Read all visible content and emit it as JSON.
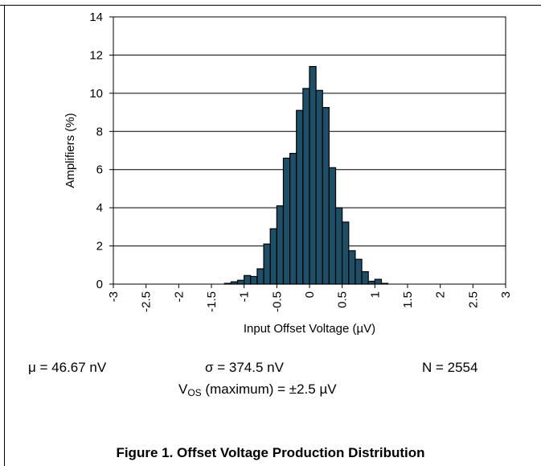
{
  "chart_data": {
    "type": "bar",
    "title": "",
    "xlabel": "Input Offset Voltage (µV)",
    "ylabel": "Amplifiers (%)",
    "xlim": [
      -3,
      3
    ],
    "ylim": [
      0,
      14
    ],
    "bin_width": 0.1,
    "x_ticks": [
      "-3",
      "-2.5",
      "-2",
      "-1.5",
      "-1",
      "-0.5",
      "0",
      "0.5",
      "1",
      "1.5",
      "2",
      "2.5",
      "3"
    ],
    "y_ticks": [
      "0",
      "2",
      "4",
      "6",
      "8",
      "10",
      "12",
      "14"
    ],
    "grid": "horizontal",
    "bar_color": "#1f4e67",
    "bins": [
      {
        "x0": -1.3,
        "value": 0.04
      },
      {
        "x0": -1.2,
        "value": 0.12
      },
      {
        "x0": -1.1,
        "value": 0.2
      },
      {
        "x0": -1.0,
        "value": 0.45
      },
      {
        "x0": -0.9,
        "value": 0.4
      },
      {
        "x0": -0.8,
        "value": 0.8
      },
      {
        "x0": -0.7,
        "value": 2.1
      },
      {
        "x0": -0.6,
        "value": 2.9
      },
      {
        "x0": -0.5,
        "value": 4.1
      },
      {
        "x0": -0.4,
        "value": 6.6
      },
      {
        "x0": -0.3,
        "value": 6.85
      },
      {
        "x0": -0.2,
        "value": 9.1
      },
      {
        "x0": -0.1,
        "value": 10.25
      },
      {
        "x0": 0.0,
        "value": 11.4
      },
      {
        "x0": 0.1,
        "value": 10.15
      },
      {
        "x0": 0.2,
        "value": 9.25
      },
      {
        "x0": 0.3,
        "value": 6.1
      },
      {
        "x0": 0.4,
        "value": 4.0
      },
      {
        "x0": 0.5,
        "value": 3.25
      },
      {
        "x0": 0.6,
        "value": 1.75
      },
      {
        "x0": 0.7,
        "value": 1.3
      },
      {
        "x0": 0.8,
        "value": 0.65
      },
      {
        "x0": 0.9,
        "value": 0.15
      },
      {
        "x0": 1.0,
        "value": 0.25
      },
      {
        "x0": 1.1,
        "value": 0.04
      }
    ]
  },
  "stats": {
    "mu": "μ = 46.67 nV",
    "sigma": "σ = 374.5 nV",
    "n": "N = 2554",
    "vos_main": "V",
    "vos_sub": "OS",
    "vos_rest": " (maximum) = ±2.5 µV"
  },
  "caption": "Figure 1. Offset Voltage Production Distribution"
}
